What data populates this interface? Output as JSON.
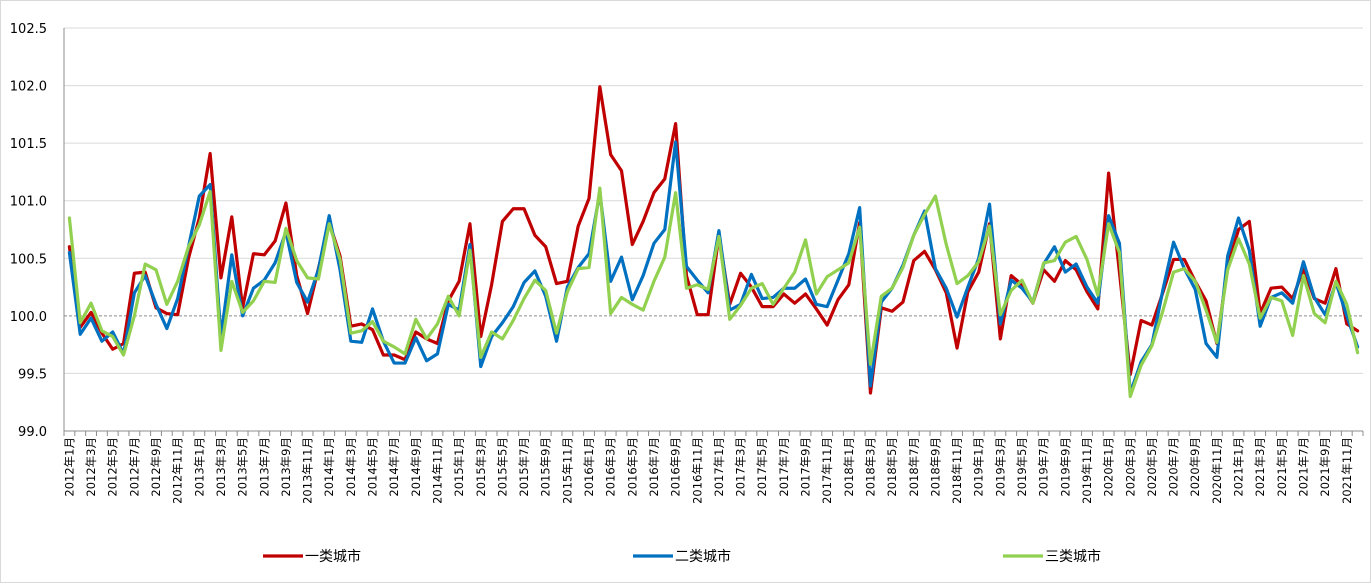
{
  "chart_data": {
    "type": "line",
    "title": "",
    "xlabel": "",
    "ylabel": "",
    "ylim": [
      99.0,
      102.5
    ],
    "yticks": [
      "99.0",
      "99.5",
      "100.0",
      "100.5",
      "101.0",
      "101.5",
      "102.0",
      "102.5"
    ],
    "reference_line": 100.0,
    "grid": "horizontal",
    "legend_position": "bottom",
    "x_start": "2012-01",
    "x_label_every": 2,
    "x": [
      "2012年1月",
      "2012年2月",
      "2012年3月",
      "2012年4月",
      "2012年5月",
      "2012年6月",
      "2012年7月",
      "2012年8月",
      "2012年9月",
      "2012年10月",
      "2012年11月",
      "2012年12月",
      "2013年1月",
      "2013年2月",
      "2013年3月",
      "2013年4月",
      "2013年5月",
      "2013年6月",
      "2013年7月",
      "2013年8月",
      "2013年9月",
      "2013年10月",
      "2013年11月",
      "2013年12月",
      "2014年1月",
      "2014年2月",
      "2014年3月",
      "2014年4月",
      "2014年5月",
      "2014年6月",
      "2014年7月",
      "2014年8月",
      "2014年9月",
      "2014年10月",
      "2014年11月",
      "2014年12月",
      "2015年1月",
      "2015年2月",
      "2015年3月",
      "2015年4月",
      "2015年5月",
      "2015年6月",
      "2015年7月",
      "2015年8月",
      "2015年9月",
      "2015年10月",
      "2015年11月",
      "2015年12月",
      "2016年1月",
      "2016年2月",
      "2016年3月",
      "2016年4月",
      "2016年5月",
      "2016年6月",
      "2016年7月",
      "2016年8月",
      "2016年9月",
      "2016年10月",
      "2016年11月",
      "2016年12月",
      "2017年1月",
      "2017年2月",
      "2017年3月",
      "2017年4月",
      "2017年5月",
      "2017年6月",
      "2017年7月",
      "2017年8月",
      "2017年9月",
      "2017年10月",
      "2017年11月",
      "2017年12月",
      "2018年1月",
      "2018年2月",
      "2018年3月",
      "2018年4月",
      "2018年5月",
      "2018年6月",
      "2018年7月",
      "2018年8月",
      "2018年9月",
      "2018年10月",
      "2018年11月",
      "2018年12月",
      "2019年1月",
      "2019年2月",
      "2019年3月",
      "2019年4月",
      "2019年5月",
      "2019年6月",
      "2019年7月",
      "2019年8月",
      "2019年9月",
      "2019年10月",
      "2019年11月",
      "2019年12月",
      "2020年1月",
      "2020年2月",
      "2020年3月",
      "2020年4月",
      "2020年5月",
      "2020年6月",
      "2020年7月",
      "2020年8月",
      "2020年9月",
      "2020年10月",
      "2020年11月",
      "2020年12月",
      "2021年1月",
      "2021年2月",
      "2021年3月",
      "2021年4月",
      "2021年5月",
      "2021年6月",
      "2021年7月",
      "2021年8月",
      "2021年9月",
      "2021年10月",
      "2021年11月",
      "2021年12月"
    ],
    "series": [
      {
        "name": "一类城市",
        "color": "#c00000",
        "values": [
          100.6,
          99.9,
          100.03,
          99.85,
          99.71,
          99.76,
          100.37,
          100.38,
          100.07,
          100.02,
          100.01,
          100.5,
          100.85,
          101.41,
          100.33,
          100.86,
          100.07,
          100.54,
          100.53,
          100.65,
          100.98,
          100.35,
          100.02,
          100.41,
          100.81,
          100.52,
          99.91,
          99.93,
          99.88,
          99.66,
          99.66,
          99.62,
          99.86,
          99.8,
          99.76,
          100.13,
          100.3,
          100.8,
          99.82,
          100.27,
          100.82,
          100.93,
          100.93,
          100.7,
          100.6,
          100.28,
          100.3,
          100.78,
          101.02,
          101.99,
          101.4,
          101.26,
          100.62,
          100.82,
          101.07,
          101.19,
          101.67,
          100.35,
          100.01,
          100.01,
          100.7,
          100.1,
          100.37,
          100.25,
          100.08,
          100.08,
          100.19,
          100.11,
          100.19,
          100.06,
          99.92,
          100.14,
          100.27,
          100.81,
          99.33,
          100.07,
          100.04,
          100.12,
          100.48,
          100.56,
          100.4,
          100.2,
          99.72,
          100.21,
          100.38,
          100.8,
          99.8,
          100.35,
          100.27,
          100.11,
          100.4,
          100.3,
          100.48,
          100.4,
          100.21,
          100.06,
          101.24,
          100.38,
          99.49,
          99.96,
          99.92,
          100.2,
          100.49,
          100.49,
          100.3,
          100.13,
          99.76,
          100.43,
          100.75,
          100.82,
          100.02,
          100.24,
          100.25,
          100.15,
          100.41,
          100.15,
          100.11,
          100.41,
          99.93,
          99.87
        ]
      },
      {
        "name": "二类城市",
        "color": "#0070c0",
        "values": [
          100.55,
          99.84,
          99.98,
          99.78,
          99.86,
          99.67,
          100.2,
          100.35,
          100.1,
          99.89,
          100.15,
          100.6,
          101.04,
          101.14,
          99.82,
          100.53,
          100.0,
          100.24,
          100.31,
          100.46,
          100.73,
          100.29,
          100.12,
          100.4,
          100.87,
          100.4,
          99.78,
          99.77,
          100.06,
          99.78,
          99.59,
          99.59,
          99.81,
          99.61,
          99.67,
          100.1,
          100.05,
          100.62,
          99.56,
          99.82,
          99.94,
          100.08,
          100.29,
          100.39,
          100.17,
          99.78,
          100.25,
          100.42,
          100.54,
          101.07,
          100.3,
          100.51,
          100.14,
          100.35,
          100.63,
          100.75,
          101.51,
          100.43,
          100.31,
          100.2,
          100.74,
          100.05,
          100.1,
          100.36,
          100.15,
          100.16,
          100.24,
          100.24,
          100.32,
          100.1,
          100.08,
          100.31,
          100.54,
          100.94,
          99.39,
          100.12,
          100.24,
          100.44,
          100.7,
          100.91,
          100.41,
          100.24,
          99.99,
          100.25,
          100.5,
          100.97,
          99.93,
          100.31,
          100.24,
          100.12,
          100.45,
          100.6,
          100.38,
          100.45,
          100.25,
          100.11,
          100.87,
          100.63,
          99.33,
          99.6,
          99.75,
          100.22,
          100.64,
          100.41,
          100.23,
          99.76,
          99.64,
          100.52,
          100.85,
          100.57,
          99.91,
          100.16,
          100.2,
          100.11,
          100.47,
          100.16,
          100.01,
          100.29,
          100.0,
          99.73
        ]
      },
      {
        "name": "三类城市",
        "color": "#92d050",
        "values": [
          100.85,
          99.94,
          100.11,
          99.87,
          99.82,
          99.66,
          100.0,
          100.45,
          100.4,
          100.1,
          100.3,
          100.6,
          100.79,
          101.08,
          99.7,
          100.3,
          100.03,
          100.13,
          100.3,
          100.29,
          100.76,
          100.48,
          100.33,
          100.32,
          100.8,
          100.49,
          99.85,
          99.87,
          99.95,
          99.78,
          99.73,
          99.67,
          99.97,
          99.8,
          99.93,
          100.17,
          100.0,
          100.57,
          99.64,
          99.86,
          99.8,
          99.96,
          100.15,
          100.31,
          100.22,
          99.85,
          100.21,
          100.41,
          100.42,
          101.11,
          100.02,
          100.16,
          100.1,
          100.05,
          100.3,
          100.51,
          101.07,
          100.24,
          100.27,
          100.23,
          100.69,
          99.97,
          100.09,
          100.24,
          100.28,
          100.1,
          100.24,
          100.38,
          100.66,
          100.19,
          100.34,
          100.4,
          100.46,
          100.77,
          99.58,
          100.17,
          100.24,
          100.42,
          100.7,
          100.88,
          101.04,
          100.62,
          100.28,
          100.35,
          100.47,
          100.78,
          100.01,
          100.22,
          100.31,
          100.11,
          100.46,
          100.48,
          100.64,
          100.69,
          100.49,
          100.18,
          100.8,
          100.55,
          99.3,
          99.57,
          99.74,
          100.04,
          100.38,
          100.41,
          100.3,
          100.05,
          99.77,
          100.4,
          100.67,
          100.45,
          99.98,
          100.16,
          100.13,
          99.83,
          100.35,
          100.02,
          99.94,
          100.3,
          100.1,
          99.68
        ]
      }
    ]
  }
}
